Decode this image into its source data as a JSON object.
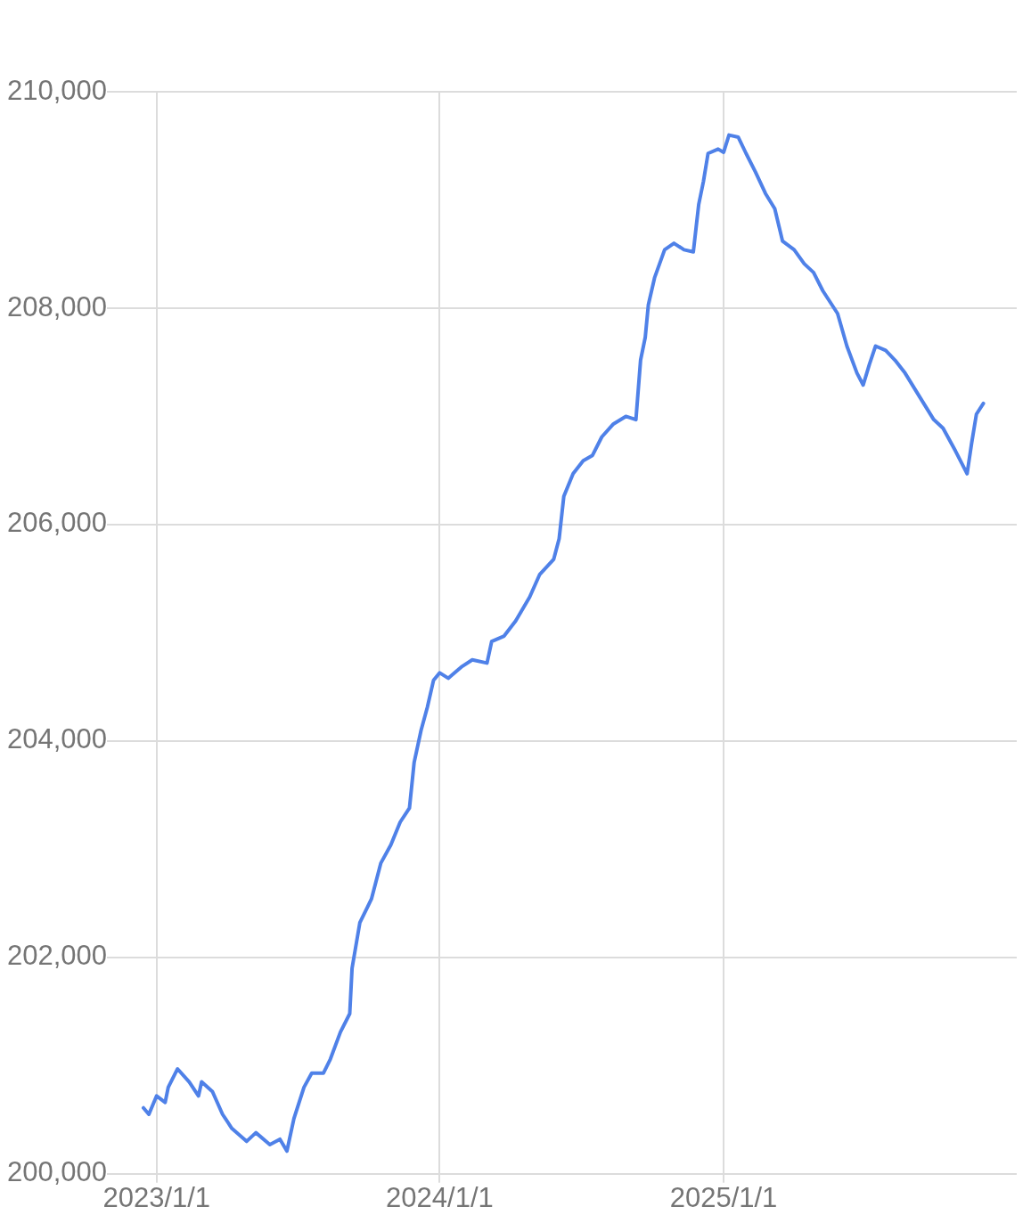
{
  "chart_data": {
    "type": "line",
    "grid": true,
    "marker": "none",
    "line_style": "solid",
    "xlim": [
      "2022-10-29",
      "2026-01-14"
    ],
    "xticks": [
      {
        "value": "2023-01-01",
        "label": "2023/1/1"
      },
      {
        "value": "2024-01-01",
        "label": "2024/1/1"
      },
      {
        "value": "2025-01-01",
        "label": "2025/1/1"
      }
    ],
    "ylim": [
      200000,
      210000
    ],
    "yticks": [
      {
        "value": 200000,
        "label": "200,000"
      },
      {
        "value": 202000,
        "label": "202,000"
      },
      {
        "value": 204000,
        "label": "204,000"
      },
      {
        "value": 206000,
        "label": "206,000"
      },
      {
        "value": 208000,
        "label": "208,000"
      },
      {
        "value": 210000,
        "label": "210,000"
      }
    ],
    "x": [
      "2022-12-15",
      "2022-12-22",
      "2023-01-01",
      "2023-01-12",
      "2023-01-16",
      "2023-01-28",
      "2023-02-12",
      "2023-02-24",
      "2023-02-28",
      "2023-03-14",
      "2023-03-27",
      "2023-04-08",
      "2023-04-27",
      "2023-05-09",
      "2023-05-27",
      "2023-06-09",
      "2023-06-18",
      "2023-06-27",
      "2023-07-10",
      "2023-07-20",
      "2023-08-04",
      "2023-08-13",
      "2023-08-26",
      "2023-09-07",
      "2023-09-10",
      "2023-09-20",
      "2023-10-05",
      "2023-10-17",
      "2023-10-30",
      "2023-11-11",
      "2023-11-23",
      "2023-11-29",
      "2023-12-08",
      "2023-12-16",
      "2023-12-24",
      "2024-01-01",
      "2024-01-12",
      "2024-01-30",
      "2024-02-12",
      "2024-03-02",
      "2024-03-08",
      "2024-03-24",
      "2024-04-08",
      "2024-04-26",
      "2024-05-09",
      "2024-05-27",
      "2024-06-03",
      "2024-06-09",
      "2024-06-21",
      "2024-07-04",
      "2024-07-16",
      "2024-07-28",
      "2024-08-12",
      "2024-08-28",
      "2024-09-10",
      "2024-09-16",
      "2024-09-22",
      "2024-09-26",
      "2024-10-04",
      "2024-10-17",
      "2024-10-29",
      "2024-11-11",
      "2024-11-23",
      "2024-11-30",
      "2024-12-06",
      "2024-12-12",
      "2024-12-25",
      "2025-01-01",
      "2025-01-08",
      "2025-01-20",
      "2025-01-30",
      "2025-02-11",
      "2025-02-24",
      "2025-03-08",
      "2025-03-18",
      "2025-04-02",
      "2025-04-15",
      "2025-04-27",
      "2025-05-09",
      "2025-05-28",
      "2025-06-09",
      "2025-06-22",
      "2025-06-30",
      "2025-07-08",
      "2025-07-16",
      "2025-07-29",
      "2025-08-10",
      "2025-08-23",
      "2025-09-10",
      "2025-09-29",
      "2025-10-11",
      "2025-10-27",
      "2025-11-11",
      "2025-11-17",
      "2025-11-23",
      "2025-12-02"
    ],
    "series": [
      {
        "color": "#4f81e8",
        "values": [
          200610,
          200550,
          200720,
          200660,
          200800,
          200970,
          200850,
          200720,
          200850,
          200760,
          200550,
          200420,
          200300,
          200380,
          200270,
          200320,
          200210,
          200510,
          200800,
          200930,
          200930,
          201060,
          201310,
          201480,
          201900,
          202320,
          202540,
          202870,
          203040,
          203250,
          203380,
          203800,
          204100,
          204310,
          204560,
          204630,
          204580,
          204690,
          204750,
          204720,
          204920,
          204970,
          205110,
          205330,
          205540,
          205680,
          205870,
          206260,
          206470,
          206590,
          206640,
          206810,
          206930,
          207000,
          206970,
          207520,
          207730,
          208030,
          208280,
          208540,
          208600,
          208540,
          208520,
          208960,
          209170,
          209430,
          209470,
          209440,
          209600,
          209580,
          209430,
          209260,
          209060,
          208920,
          208620,
          208540,
          208410,
          208330,
          208160,
          207950,
          207650,
          207400,
          207290,
          207480,
          207650,
          207610,
          207520,
          207400,
          207190,
          206970,
          206890,
          206680,
          206470,
          206760,
          207020,
          207120
        ]
      }
    ]
  }
}
